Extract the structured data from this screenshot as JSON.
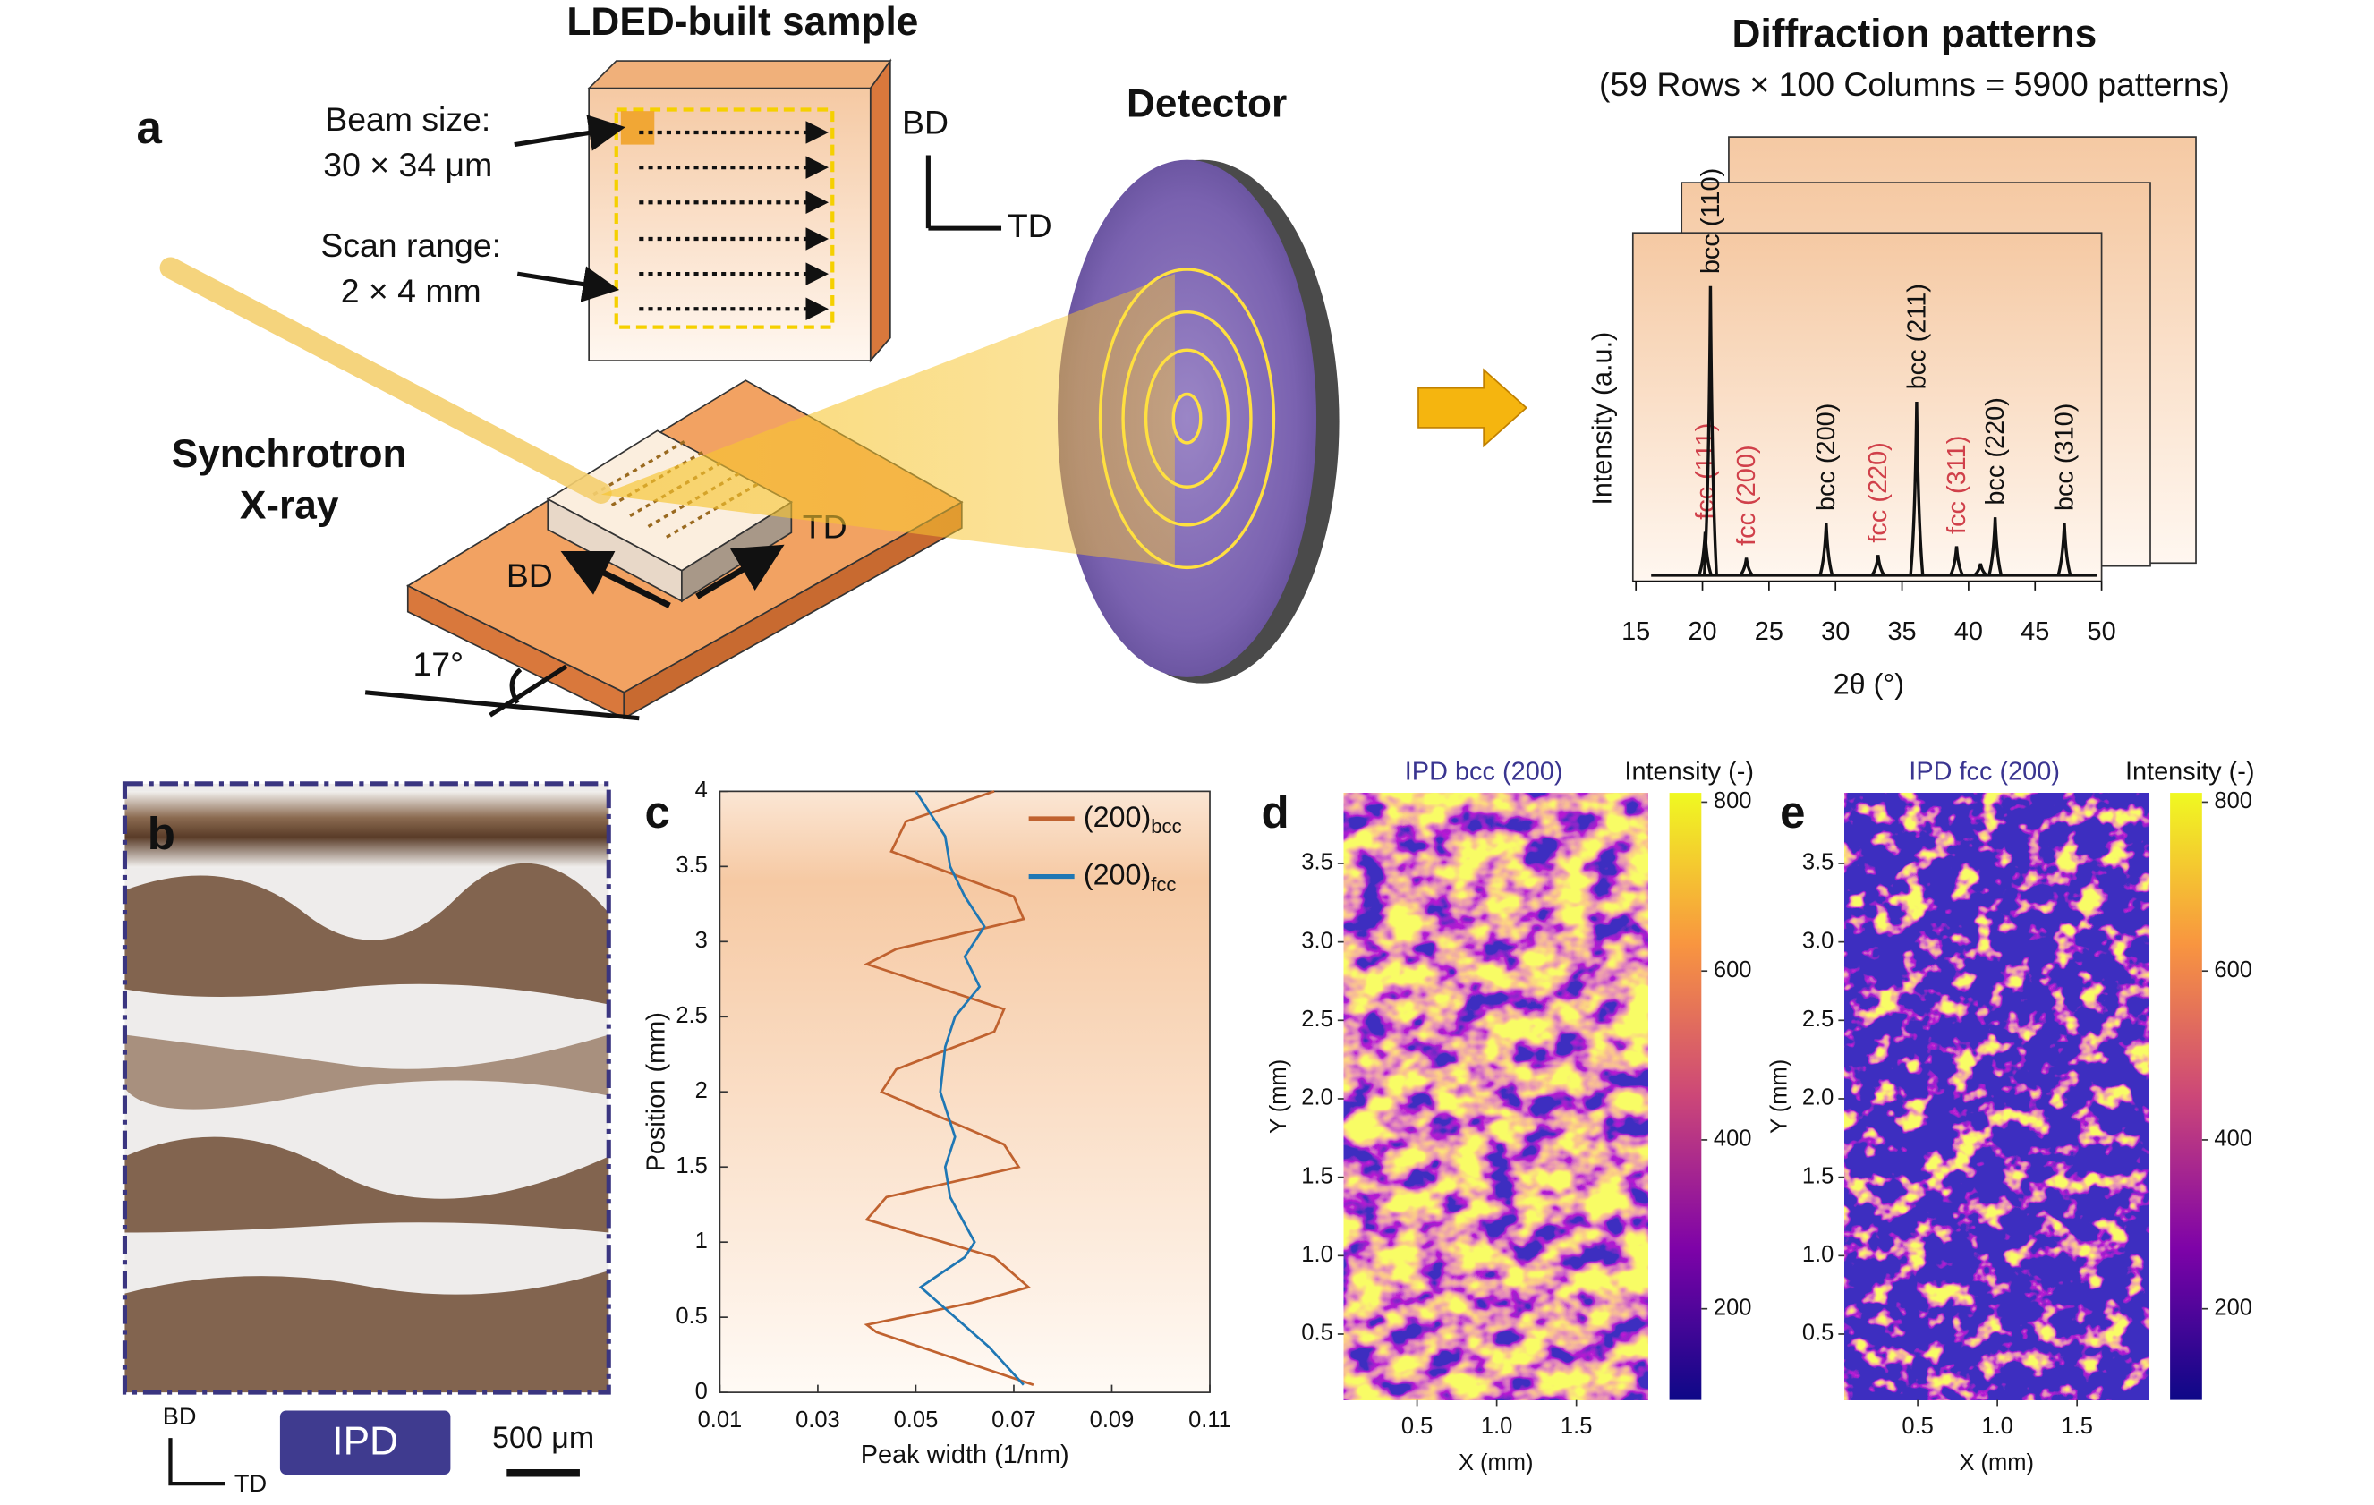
{
  "figure": {
    "panel_labels": [
      "a",
      "b",
      "c",
      "d",
      "e"
    ],
    "schematic": {
      "sample_title": "LDED-built sample",
      "beam_size_label": "Beam size:",
      "beam_size": "30 × 34 μm",
      "scan_range_label": "Scan range:",
      "scan_range": "2 × 4 mm",
      "bd": "BD",
      "td": "TD",
      "detector": "Detector",
      "source_line1": "Synchrotron",
      "source_line2": "X-ray",
      "stage_bd": "BD",
      "stage_td": "TD",
      "angle": "17°"
    },
    "micrograph": {
      "bd": "BD",
      "td": "TD",
      "ipd": "IPD",
      "scale_bar": "500 μm"
    }
  },
  "chart_data": [
    {
      "type": "spectrum",
      "title": "Diffraction patterns",
      "subtitle": "(59 Rows × 100 Columns = 5900 patterns)",
      "x_label": "2θ (°)",
      "y_label": "Intensity (a.u.)",
      "xlim": [
        15,
        50
      ],
      "xticks": [
        15,
        20,
        25,
        30,
        35,
        40,
        45,
        50
      ],
      "color": "#111111",
      "positions": [
        20.2,
        20.6,
        23.3,
        29.3,
        33.2,
        36.1,
        39.1,
        40.9,
        42.0,
        47.2
      ],
      "intensities": [
        0.15,
        1.0,
        0.06,
        0.18,
        0.07,
        0.6,
        0.1,
        0.04,
        0.2,
        0.18
      ],
      "labels": [
        "fcc (111)",
        "bcc (110)",
        "fcc (200)",
        "bcc (200)",
        "fcc (220)",
        "bcc (211)",
        "fcc (311)",
        null,
        "bcc (220)",
        "bcc (310)"
      ],
      "label_colors": [
        "#d0404a",
        "#111111",
        "#d0404a",
        "#111111",
        "#d0404a",
        "#111111",
        "#d0404a",
        null,
        "#111111",
        "#111111"
      ]
    },
    {
      "type": "line",
      "x_label": "Peak width (1/nm)",
      "y_label": "Position (mm)",
      "xlim": [
        0.01,
        0.11
      ],
      "xticks": [
        0.01,
        0.03,
        0.05,
        0.07,
        0.09,
        0.11
      ],
      "ylim": [
        0,
        4
      ],
      "yticks": [
        0,
        0.5,
        1,
        1.5,
        2,
        2.5,
        3,
        3.5,
        4
      ],
      "series": [
        {
          "name": "(200)",
          "name_sub": "bcc",
          "color": "#c0622f",
          "values": [
            0.074,
            0.042,
            0.04,
            0.062,
            0.073,
            0.066,
            0.04,
            0.044,
            0.071,
            0.068,
            0.043,
            0.046,
            0.066,
            0.068,
            0.04,
            0.046,
            0.072,
            0.07,
            0.045,
            0.048,
            0.066
          ],
          "positions": [
            0.05,
            0.4,
            0.45,
            0.6,
            0.7,
            0.9,
            1.15,
            1.3,
            1.5,
            1.65,
            2.0,
            2.15,
            2.4,
            2.55,
            2.85,
            2.95,
            3.15,
            3.3,
            3.6,
            3.8,
            4.0
          ]
        },
        {
          "name": "(200)",
          "name_sub": "fcc",
          "color": "#1f77b4",
          "values": [
            0.072,
            0.065,
            0.058,
            0.051,
            0.06,
            0.062,
            0.057,
            0.056,
            0.058,
            0.055,
            0.056,
            0.058,
            0.063,
            0.06,
            0.064,
            0.06,
            0.057,
            0.056,
            0.053,
            0.05
          ],
          "positions": [
            0.05,
            0.3,
            0.5,
            0.7,
            0.9,
            1.0,
            1.3,
            1.5,
            1.7,
            2.0,
            2.3,
            2.5,
            2.7,
            2.9,
            3.1,
            3.3,
            3.5,
            3.7,
            3.85,
            4.0
          ]
        }
      ]
    },
    {
      "type": "heatmap",
      "title": "IPD bcc (200)",
      "colorbar_label": "Intensity (-)",
      "x_label": "X (mm)",
      "y_label": "Y (mm)",
      "xlim": [
        0.04,
        1.95
      ],
      "xticks": [
        0.5,
        {
          "value": 1,
          "label": "1.0"
        },
        1.5
      ],
      "ylim": [
        0.08,
        3.95
      ],
      "yticks": [
        0.5,
        {
          "value": 1,
          "label": "1.0"
        },
        1.5,
        {
          "value": 2,
          "label": "2.0"
        },
        2.5,
        {
          "value": 3,
          "label": "3.0"
        },
        3.5
      ],
      "clim": [
        92,
        811
      ],
      "cticks": [
        200,
        400,
        600,
        800
      ],
      "colormap": "plasma",
      "density": "high"
    },
    {
      "type": "heatmap",
      "title": "IPD fcc (200)",
      "colorbar_label": "Intensity (-)",
      "x_label": "X (mm)",
      "y_label": "Y (mm)",
      "xlim": [
        0.04,
        1.95
      ],
      "xticks": [
        0.5,
        {
          "value": 1,
          "label": "1.0"
        },
        1.5
      ],
      "ylim": [
        0.08,
        3.95
      ],
      "yticks": [
        0.5,
        {
          "value": 1,
          "label": "1.0"
        },
        1.5,
        {
          "value": 2,
          "label": "2.0"
        },
        2.5,
        {
          "value": 3,
          "label": "3.0"
        },
        3.5
      ],
      "clim": [
        92,
        811
      ],
      "cticks": [
        200,
        400,
        600,
        800
      ],
      "colormap": "plasma",
      "density": "low"
    }
  ]
}
